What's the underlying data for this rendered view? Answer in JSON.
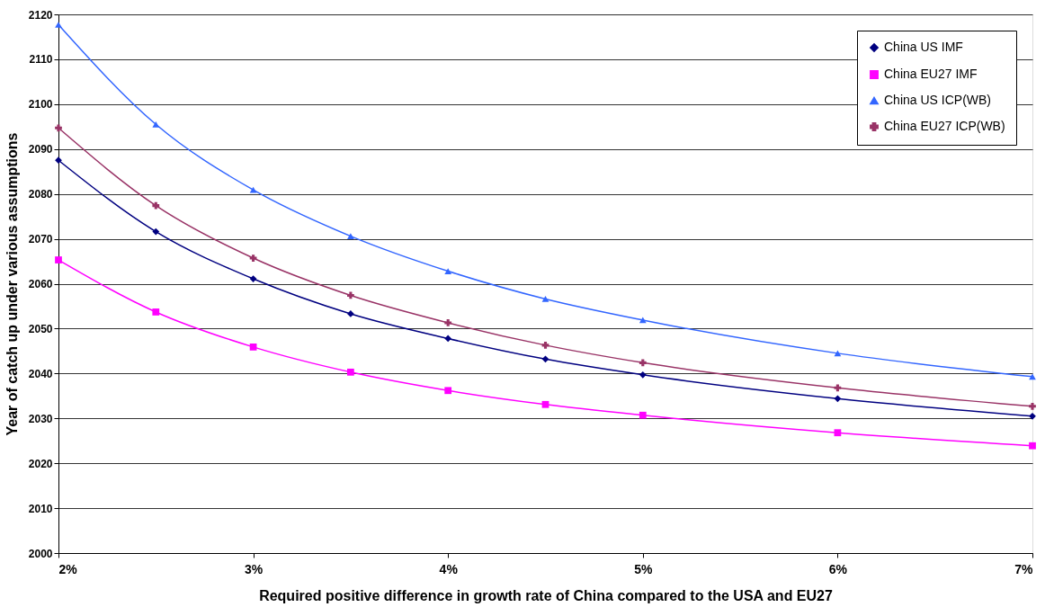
{
  "chart_data": {
    "type": "line",
    "xlabel": "Required positive difference in growth rate of China compared to the USA and EU27",
    "ylabel": "Year of catch up under various assumptions",
    "x": [
      2,
      2.5,
      3,
      3.5,
      4,
      4.5,
      5,
      6,
      7
    ],
    "series": [
      {
        "name": "China US IMF",
        "color": "#000080",
        "marker": "diamond",
        "values": [
          2087.5,
          2071.6,
          2061.1,
          2053.3,
          2047.8,
          2043.2,
          2039.7,
          2034.4,
          2030.5
        ]
      },
      {
        "name": "China EU27 IMF",
        "color": "#ff00ff",
        "marker": "square",
        "values": [
          2065.3,
          2053.7,
          2045.9,
          2040.3,
          2036.2,
          2033.1,
          2030.7,
          2026.8,
          2023.9
        ]
      },
      {
        "name": "China US ICP(WB)",
        "color": "#3366ff",
        "marker": "triangle",
        "values": [
          2117.7,
          2095.5,
          2080.9,
          2070.6,
          2062.8,
          2056.6,
          2051.9,
          2044.5,
          2039.3
        ]
      },
      {
        "name": "China EU27 ICP(WB)",
        "color": "#993366",
        "marker": "cross",
        "values": [
          2094.7,
          2077.4,
          2065.7,
          2057.4,
          2051.3,
          2046.3,
          2042.4,
          2036.8,
          2032.7
        ]
      }
    ],
    "xlim": [
      2,
      7
    ],
    "xticks": [
      {
        "value": 2,
        "label": "2%"
      },
      {
        "value": 3,
        "label": "3%"
      },
      {
        "value": 4,
        "label": "4%"
      },
      {
        "value": 5,
        "label": "5%"
      },
      {
        "value": 6,
        "label": "6%"
      },
      {
        "value": 7,
        "label": "7%"
      }
    ],
    "ylim": [
      2000,
      2120
    ],
    "yticks": [
      2000,
      2010,
      2020,
      2030,
      2040,
      2050,
      2060,
      2070,
      2080,
      2090,
      2100,
      2110,
      2120
    ],
    "grid": "y",
    "legend": "top right",
    "line_style": "solid"
  }
}
